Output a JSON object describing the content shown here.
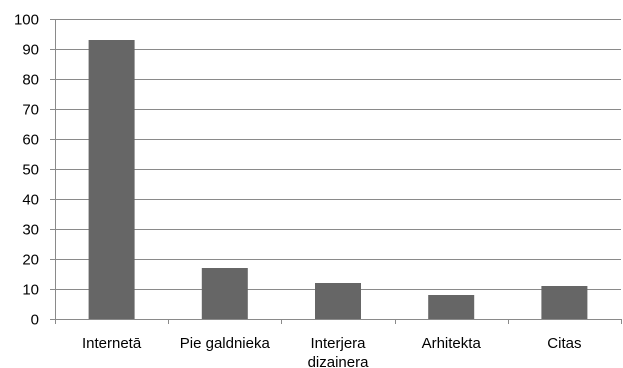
{
  "chart_data": {
    "type": "bar",
    "title": "",
    "xlabel": "",
    "ylabel": "",
    "categories": [
      [
        "Internetā"
      ],
      [
        "Pie galdnieka"
      ],
      [
        "Interjera",
        "dizainera"
      ],
      [
        "Arhitekta"
      ],
      [
        "Citas"
      ]
    ],
    "values": [
      93,
      17,
      12,
      8,
      11
    ],
    "ylim": [
      0,
      100
    ],
    "yticks": [
      0,
      10,
      20,
      30,
      40,
      50,
      60,
      70,
      80,
      90,
      100
    ],
    "grid": true,
    "legend": "none",
    "bar_color": "#666666",
    "grid_color": "#8a8a8a"
  }
}
